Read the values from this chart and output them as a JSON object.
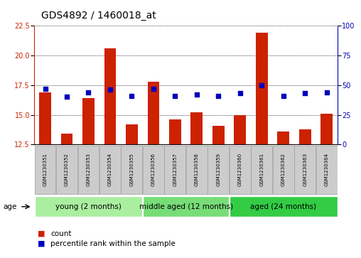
{
  "title": "GDS4892 / 1460018_at",
  "samples": [
    "GSM1230351",
    "GSM1230352",
    "GSM1230353",
    "GSM1230354",
    "GSM1230355",
    "GSM1230356",
    "GSM1230357",
    "GSM1230358",
    "GSM1230359",
    "GSM1230360",
    "GSM1230361",
    "GSM1230362",
    "GSM1230363",
    "GSM1230364"
  ],
  "counts": [
    16.9,
    13.4,
    16.4,
    20.6,
    14.2,
    17.8,
    14.6,
    15.2,
    14.1,
    15.0,
    21.9,
    13.6,
    13.8,
    15.1
  ],
  "percentiles": [
    47,
    40,
    44,
    46,
    41,
    47,
    41,
    42,
    41,
    43,
    50,
    41,
    43,
    44
  ],
  "ylim_left": [
    12.5,
    22.5
  ],
  "ylim_right": [
    0,
    100
  ],
  "yticks_left": [
    12.5,
    15.0,
    17.5,
    20.0,
    22.5
  ],
  "yticks_right": [
    0,
    25,
    50,
    75,
    100
  ],
  "groups": [
    {
      "label": "young (2 months)",
      "indices": [
        0,
        1,
        2,
        3,
        4
      ],
      "color": "#AAEEA0"
    },
    {
      "label": "middle aged (12 months)",
      "indices": [
        5,
        6,
        7,
        8
      ],
      "color": "#77DD77"
    },
    {
      "label": "aged (24 months)",
      "indices": [
        9,
        10,
        11,
        12,
        13
      ],
      "color": "#33CC44"
    }
  ],
  "bar_color": "#CC2200",
  "dot_color": "#0000BB",
  "bar_width": 0.55,
  "plot_bg_color": "#FFFFFF",
  "label_box_color": "#CCCCCC",
  "label_box_edge": "#999999",
  "title_fontsize": 10,
  "tick_fontsize": 7,
  "sample_fontsize": 5,
  "group_fontsize": 7.5,
  "legend_fontsize": 7.5,
  "age_label": "age",
  "legend_count": "count",
  "legend_percentile": "percentile rank within the sample"
}
